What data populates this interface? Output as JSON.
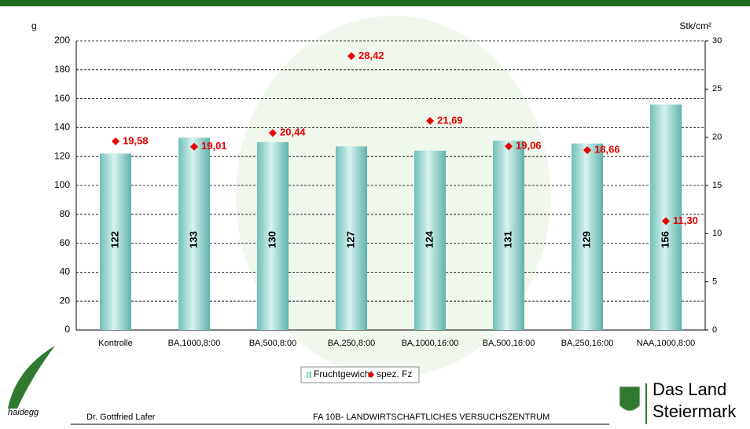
{
  "chart_data": {
    "type": "bar-dot",
    "ylabel": "g",
    "y2label": "Stk/cm²",
    "categories": [
      "Kontrolle",
      "BA,1000,8:00",
      "BA,500,8:00",
      "BA,250,8:00",
      "BA,1000,16:00",
      "BA,500,16:00",
      "BA,250,16:00",
      "NAA,1000,8:00"
    ],
    "series": [
      {
        "name": "Fruchtgewicht",
        "color": "#9fd8d3",
        "values": [
          122,
          133,
          130,
          127,
          124,
          131,
          129,
          156
        ]
      },
      {
        "name": "spez. Fz",
        "color": "#e60000",
        "axis": "y2",
        "values": [
          19.58,
          19.01,
          20.44,
          28.42,
          21.69,
          19.06,
          18.66,
          11.3
        ],
        "value_labels": [
          "19,58",
          "19,01",
          "20,44",
          "28,42",
          "21,69",
          "19,06",
          "18,66",
          "11,30"
        ]
      }
    ],
    "ylim": [
      0,
      200
    ],
    "yticks": [
      0,
      20,
      40,
      60,
      80,
      100,
      120,
      140,
      160,
      180,
      200
    ],
    "y2lim": [
      0,
      30
    ],
    "y2ticks": [
      0,
      5,
      10,
      15,
      20,
      25,
      30
    ],
    "grid": true
  },
  "footer": {
    "author": "Dr. Gottfried Lafer",
    "institute": "FA 10B- LANDWIRTSCHAFTLICHES VERSUCHSZENTRUM",
    "logo_left": "haidegg",
    "logo_right_1": "Das Land",
    "logo_right_2": "Steiermark"
  }
}
